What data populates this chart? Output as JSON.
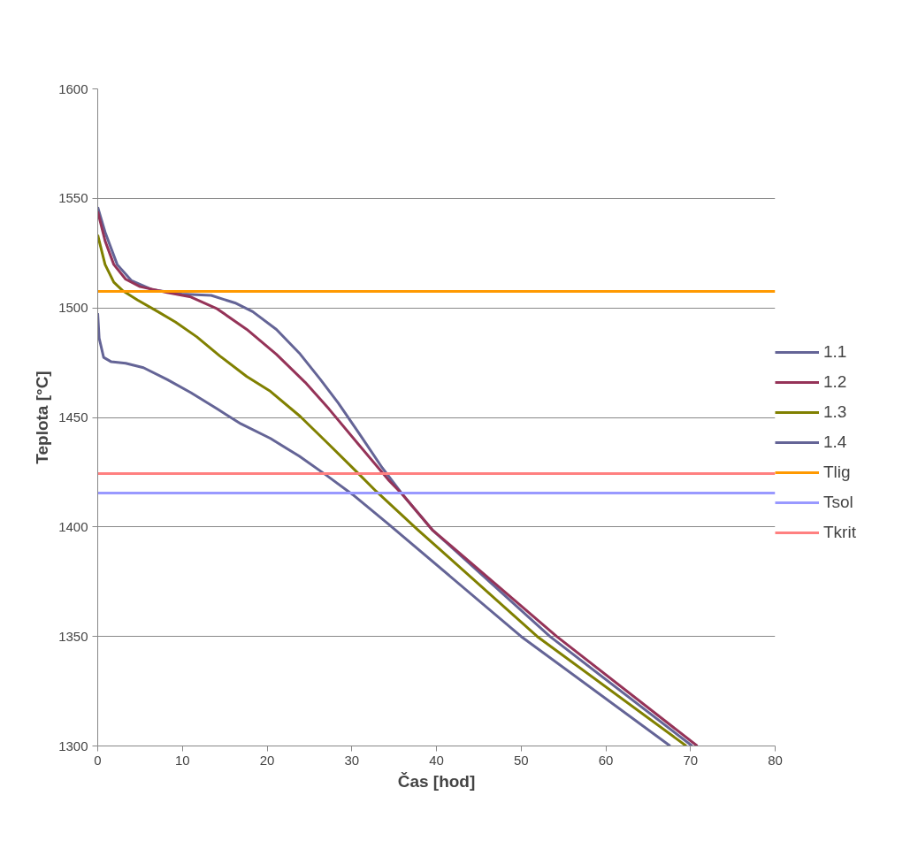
{
  "chart_data": {
    "type": "line",
    "xlabel": "Čas [hod]",
    "ylabel": "Teplota [°C]",
    "xlim": [
      0,
      80
    ],
    "xticks": [
      0,
      10,
      20,
      30,
      40,
      50,
      60,
      70,
      80
    ],
    "ylim": [
      1300,
      1600
    ],
    "yticks": [
      1300,
      1350,
      1400,
      1450,
      1500,
      1550,
      1600
    ],
    "grid": "y",
    "legend": "right",
    "marker": "none",
    "line_style": "solid",
    "series": [
      {
        "name": "1.1",
        "color": "#646496",
        "x": [
          0,
          0.87,
          2.3,
          4.0,
          6.4,
          9.9,
          13.4,
          16.2,
          18.3,
          21.1,
          23.8,
          26.3,
          28.4,
          30.8,
          33.6,
          36.0,
          39.5,
          53.4,
          70.2
        ],
        "values": [
          1546.0,
          1534.6,
          1519.8,
          1512.4,
          1508.4,
          1506.3,
          1505.7,
          1502.3,
          1498.3,
          1490.2,
          1479.4,
          1467.3,
          1456.6,
          1443.1,
          1427.0,
          1414.8,
          1398.7,
          1350,
          1300
        ]
      },
      {
        "name": "1.2",
        "color": "#953358",
        "x": [
          0,
          0.87,
          1.9,
          3.3,
          5.0,
          8.2,
          11.0,
          14.1,
          17.6,
          21.1,
          24.5,
          27.3,
          30.8,
          34.3,
          36.0,
          39.5,
          54.2,
          70.8
        ],
        "values": [
          1544.0,
          1530.6,
          1519.8,
          1513.1,
          1509.7,
          1507.0,
          1505.0,
          1499.6,
          1490.2,
          1478.8,
          1466.0,
          1453.9,
          1437.7,
          1421.6,
          1414.8,
          1398.7,
          1350,
          1300
        ]
      },
      {
        "name": "1.3",
        "color": "#808000",
        "x": [
          0,
          0.87,
          1.9,
          3.0,
          4.7,
          7.1,
          9.2,
          11.7,
          14.4,
          17.6,
          20.4,
          23.9,
          27.3,
          30.8,
          32.9,
          37.8,
          51.9,
          69.5
        ],
        "values": [
          1533.3,
          1519.8,
          1511.7,
          1507.7,
          1503.6,
          1498.3,
          1493.5,
          1486.8,
          1478.1,
          1468.7,
          1461.9,
          1450.5,
          1437.7,
          1424.3,
          1416.2,
          1398.7,
          1350,
          1300
        ]
      },
      {
        "name": "1.4",
        "color": "#646496",
        "x": [
          0,
          0.17,
          0.7,
          1.6,
          3.3,
          5.4,
          8.2,
          11.0,
          14.1,
          16.9,
          20.4,
          23.8,
          27.0,
          30.1,
          34.3,
          50.0,
          67.6
        ],
        "values": [
          1497.6,
          1486.2,
          1477.4,
          1475.4,
          1474.7,
          1472.7,
          1467.3,
          1461.3,
          1453.9,
          1447.1,
          1440.4,
          1432.3,
          1423.6,
          1414.8,
          1401.4,
          1350,
          1300
        ]
      }
    ],
    "ref_lines": [
      {
        "axis": "y",
        "value": 1507.5,
        "label": "Tlig",
        "color": "#ff9900"
      },
      {
        "axis": "y",
        "value": 1415.5,
        "label": "Tsol",
        "color": "#9999ff"
      },
      {
        "axis": "y",
        "value": 1424.4,
        "label": "Tkrit",
        "color": "#ff8080"
      }
    ]
  }
}
